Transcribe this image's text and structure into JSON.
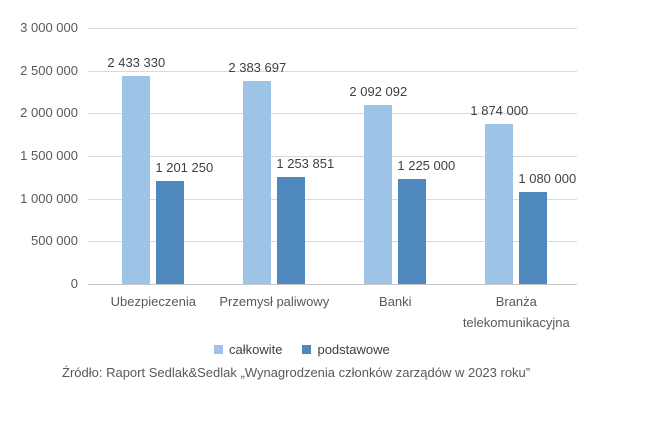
{
  "chart_data": {
    "type": "bar",
    "title": "",
    "xlabel": "",
    "ylabel": "",
    "categories": [
      "Ubezpieczenia",
      "Przemysł paliwowy",
      "Banki",
      "Branża\ntelekomunikacyjna"
    ],
    "series": [
      {
        "name": "całkowite",
        "color": "#9DC3E6",
        "values": [
          2433330,
          2383697,
          2092092,
          1874000
        ],
        "labels": [
          "2 433 330",
          "2 383 697",
          "2 092 092",
          "1 874 000"
        ]
      },
      {
        "name": "podstawowe",
        "color": "#4E88BC",
        "values": [
          1201250,
          1253851,
          1225000,
          1080000
        ],
        "labels": [
          "1 201 250",
          "1 253 851",
          "1 225 000",
          "1 080 000"
        ]
      }
    ],
    "ylim": [
      0,
      3000000
    ],
    "ytick_step": 500000,
    "ytick_labels": [
      "0",
      "500 000",
      "1 000 000",
      "1 500 000",
      "2 000 000",
      "2 500 000",
      "3 000 000"
    ],
    "grid": true,
    "legend_position": "bottom"
  },
  "source_note": "Źródło: Raport Sedlak&Sedlak „Wynagrodzenia członków zarządów w 2023 roku”",
  "colors": {
    "gridline": "#D9D9D9",
    "axis_line": "#C6C6C6",
    "tick_text": "#595959",
    "data_label_text": "#404040"
  }
}
